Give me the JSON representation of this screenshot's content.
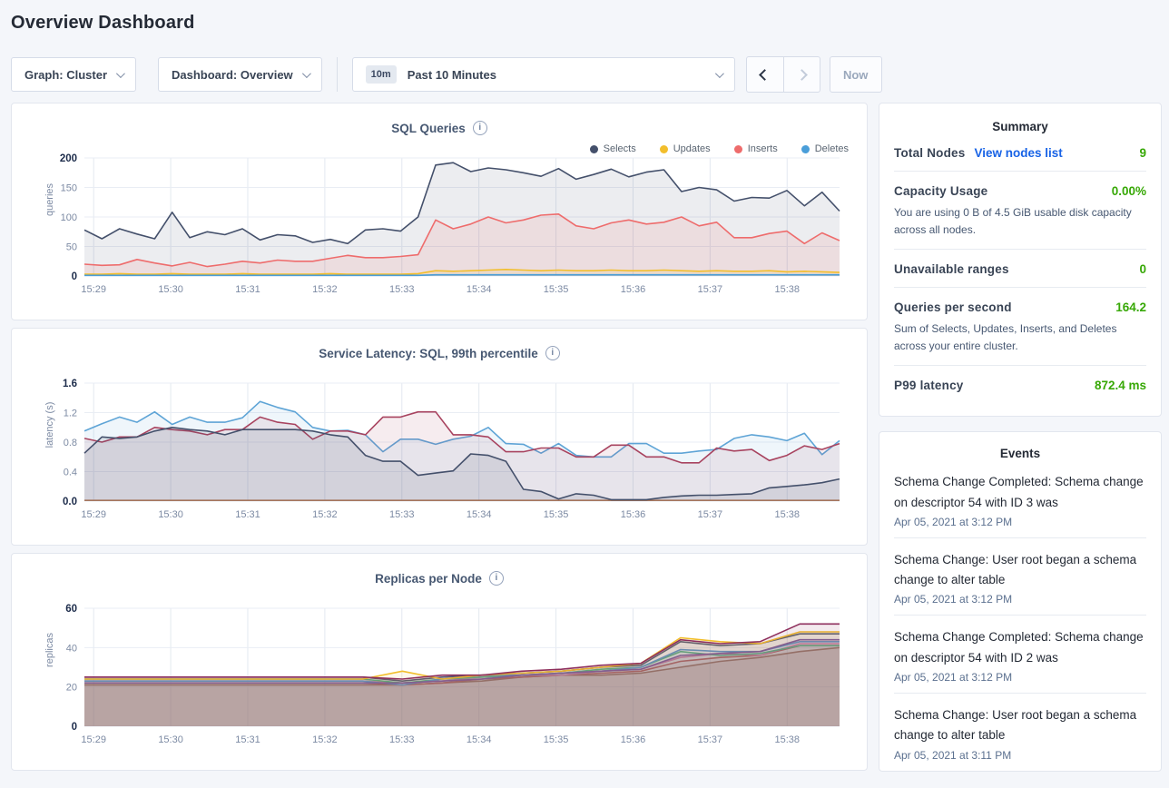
{
  "page": {
    "title": "Overview Dashboard"
  },
  "icons": {
    "info": "i"
  },
  "controls": {
    "graph_dropdown": "Graph: Cluster",
    "dashboard_dropdown": "Dashboard: Overview",
    "time_badge": "10m",
    "time_label": "Past 10 Minutes",
    "now_label": "Now"
  },
  "colors": {
    "accent_green": "#37a806",
    "link_blue": "#1863e6",
    "selects_navy": "#44506b",
    "updates_yellow": "#f2be2c",
    "inserts_red": "#ee6c6c",
    "deletes_blue": "#4a9ed9"
  },
  "summary": {
    "title": "Summary",
    "items": [
      {
        "label": "Total Nodes",
        "link": "View nodes list",
        "value": "9",
        "note": ""
      },
      {
        "label": "Capacity Usage",
        "link": "",
        "value": "0.00%",
        "note": "You are using 0 B of 4.5 GiB usable disk capacity across all nodes."
      },
      {
        "label": "Unavailable ranges",
        "link": "",
        "value": "0",
        "note": ""
      },
      {
        "label": "Queries per second",
        "link": "",
        "value": "164.2",
        "note": "Sum of Selects, Updates, Inserts, and Deletes across your entire cluster."
      },
      {
        "label": "P99 latency",
        "link": "",
        "value": "872.4 ms",
        "note": ""
      }
    ]
  },
  "events": {
    "title": "Events",
    "items": [
      {
        "text": "Schema Change Completed: Schema change on descriptor 54 with ID 3 was",
        "time": "Apr 05, 2021 at 3:12 PM"
      },
      {
        "text": "Schema Change: User root began a schema change to alter table",
        "time": "Apr 05, 2021 at 3:12 PM"
      },
      {
        "text": "Schema Change Completed: Schema change on descriptor 54 with ID 2 was",
        "time": "Apr 05, 2021 at 3:12 PM"
      },
      {
        "text": "Schema Change: User root began a schema change to alter table",
        "time": "Apr 05, 2021 at 3:11 PM"
      }
    ]
  },
  "chart_data": [
    {
      "id": "sql-queries",
      "type": "area",
      "title": "SQL Queries",
      "ylabel": "queries",
      "y_max": 200,
      "y_ticks": [
        0,
        50,
        100,
        150,
        200
      ],
      "y_tick_labels": [
        "0",
        "50",
        "100",
        "150",
        "200"
      ],
      "x_min": -0.12,
      "x_max": 9.68,
      "x_ticks": [
        0,
        1,
        2,
        3,
        4,
        5,
        6,
        7,
        8,
        9
      ],
      "x_tick_labels": [
        "15:29",
        "15:30",
        "15:31",
        "15:32",
        "15:33",
        "15:34",
        "15:35",
        "15:36",
        "15:37",
        "15:38"
      ],
      "grid": true,
      "show_legend": true,
      "legend": [
        "Selects",
        "Updates",
        "Inserts",
        "Deletes"
      ],
      "series": [
        {
          "name": "Selects",
          "color": "#44506b",
          "fill_opacity": 0.1,
          "values": [
            78,
            63,
            80,
            71,
            63,
            108,
            65,
            75,
            70,
            80,
            61,
            70,
            68,
            57,
            62,
            55,
            78,
            80,
            76,
            100,
            188,
            192,
            177,
            183,
            180,
            175,
            169,
            182,
            164,
            172,
            181,
            168,
            176,
            180,
            143,
            150,
            146,
            127,
            133,
            132,
            145,
            119,
            142,
            110
          ]
        },
        {
          "name": "Inserts",
          "color": "#ee6c6c",
          "fill_opacity": 0.12,
          "values": [
            20,
            18,
            19,
            28,
            22,
            17,
            23,
            16,
            20,
            25,
            22,
            27,
            25,
            25,
            30,
            35,
            31,
            31,
            33,
            36,
            95,
            80,
            88,
            100,
            90,
            95,
            103,
            105,
            85,
            80,
            90,
            95,
            88,
            91,
            100,
            85,
            91,
            65,
            65,
            72,
            76,
            55,
            73,
            60
          ]
        },
        {
          "name": "Updates",
          "color": "#f2be2c",
          "fill_opacity": 0.12,
          "values": [
            3,
            3,
            4,
            3,
            3,
            4,
            3,
            3,
            3,
            4,
            3,
            3,
            3,
            3,
            4,
            3,
            3,
            3,
            3,
            4,
            9,
            8,
            9,
            10,
            11,
            10,
            9,
            10,
            9,
            9,
            10,
            9,
            9,
            10,
            9,
            8,
            9,
            8,
            8,
            9,
            7,
            8,
            7,
            6
          ]
        },
        {
          "name": "Deletes",
          "color": "#4a9ed9",
          "fill_opacity": 0.12,
          "values": [
            1,
            1,
            1,
            1,
            1,
            1,
            1,
            1,
            1,
            1,
            1,
            1,
            1,
            1,
            1,
            1,
            1,
            1,
            1,
            1,
            2,
            2,
            2,
            2,
            2,
            2,
            2,
            2,
            2,
            2,
            2,
            2,
            2,
            2,
            2,
            2,
            2,
            2,
            2,
            2,
            2,
            2,
            2,
            2
          ]
        }
      ]
    },
    {
      "id": "service-latency",
      "type": "area",
      "title": "Service Latency: SQL, 99th percentile",
      "ylabel": "latency (s)",
      "y_max": 1.6,
      "y_ticks": [
        0,
        0.4,
        0.8,
        1.2,
        1.6
      ],
      "y_tick_labels": [
        "0.0",
        "0.4",
        "0.8",
        "1.2",
        "1.6"
      ],
      "x_min": -0.12,
      "x_max": 9.68,
      "x_ticks": [
        0,
        1,
        2,
        3,
        4,
        5,
        6,
        7,
        8,
        9
      ],
      "x_tick_labels": [
        "15:29",
        "15:30",
        "15:31",
        "15:32",
        "15:33",
        "15:34",
        "15:35",
        "15:36",
        "15:37",
        "15:38"
      ],
      "grid": true,
      "show_legend": false,
      "series": [
        {
          "name": "node-orange",
          "color": "#bf7d4e",
          "fill_opacity": 0.05,
          "values": [
            0.01,
            0.01,
            0.01,
            0.01,
            0.01,
            0.01,
            0.01,
            0.01,
            0.01,
            0.01,
            0.01,
            0.01,
            0.01,
            0.01,
            0.01,
            0.01,
            0.01,
            0.01,
            0.01,
            0.01,
            0.01,
            0.01,
            0.01,
            0.01,
            0.01,
            0.01,
            0.01,
            0.01,
            0.01,
            0.01,
            0.01,
            0.01,
            0.01,
            0.01,
            0.01,
            0.01,
            0.01,
            0.01,
            0.01,
            0.01,
            0.01,
            0.01,
            0.01,
            0.01
          ]
        },
        {
          "name": "node-blue",
          "color": "#5ea4d6",
          "fill_opacity": 0.1,
          "values": [
            0.95,
            1.05,
            1.14,
            1.07,
            1.21,
            1.04,
            1.14,
            1.07,
            1.07,
            1.13,
            1.35,
            1.27,
            1.21,
            1.0,
            0.95,
            0.96,
            0.9,
            0.67,
            0.84,
            0.84,
            0.77,
            0.84,
            0.88,
            1.0,
            0.78,
            0.77,
            0.65,
            0.78,
            0.62,
            0.6,
            0.6,
            0.78,
            0.78,
            0.65,
            0.65,
            0.68,
            0.7,
            0.85,
            0.9,
            0.87,
            0.82,
            0.92,
            0.63,
            0.82
          ]
        },
        {
          "name": "node-maroon",
          "color": "#a8435f",
          "fill_opacity": 0.1,
          "values": [
            0.85,
            0.8,
            0.87,
            0.87,
            1.0,
            0.97,
            0.95,
            0.9,
            0.97,
            0.97,
            1.14,
            1.07,
            1.04,
            0.84,
            0.95,
            0.95,
            0.9,
            1.14,
            1.14,
            1.21,
            1.21,
            0.9,
            0.9,
            0.87,
            0.67,
            0.67,
            0.72,
            0.72,
            0.6,
            0.6,
            0.76,
            0.76,
            0.6,
            0.6,
            0.52,
            0.52,
            0.72,
            0.68,
            0.7,
            0.55,
            0.62,
            0.75,
            0.7,
            0.78
          ]
        },
        {
          "name": "node-navy",
          "color": "#44506b",
          "fill_opacity": 0.12,
          "values": [
            0.65,
            0.87,
            0.85,
            0.87,
            0.95,
            1.0,
            0.97,
            0.95,
            0.9,
            0.97,
            0.97,
            0.97,
            0.97,
            0.95,
            0.9,
            0.87,
            0.62,
            0.54,
            0.54,
            0.35,
            0.38,
            0.41,
            0.64,
            0.62,
            0.54,
            0.16,
            0.13,
            0.03,
            0.1,
            0.08,
            0.02,
            0.02,
            0.02,
            0.05,
            0.07,
            0.08,
            0.08,
            0.09,
            0.1,
            0.18,
            0.2,
            0.22,
            0.25,
            0.3
          ]
        }
      ]
    },
    {
      "id": "replicas-per-node",
      "type": "area",
      "title": "Replicas per Node",
      "ylabel": "replicas",
      "y_max": 60,
      "y_ticks": [
        0,
        20,
        40,
        60
      ],
      "y_tick_labels": [
        "0",
        "20",
        "40",
        "60"
      ],
      "x_min": -0.12,
      "x_max": 9.68,
      "x_ticks": [
        0,
        1,
        2,
        3,
        4,
        5,
        6,
        7,
        8,
        9
      ],
      "x_tick_labels": [
        "15:29",
        "15:30",
        "15:31",
        "15:32",
        "15:33",
        "15:34",
        "15:35",
        "15:36",
        "15:37",
        "15:38"
      ],
      "grid": true,
      "show_legend": false,
      "series": [
        {
          "name": "node-1",
          "color": "#9e6b55",
          "fill_opacity": 0.18,
          "values": [
            21,
            21,
            21,
            21,
            21,
            21,
            21,
            21,
            21,
            22,
            23,
            25,
            26,
            26,
            27,
            30,
            33,
            35,
            38,
            40
          ]
        },
        {
          "name": "node-2",
          "color": "#c0504d",
          "fill_opacity": 0.1,
          "values": [
            22,
            22,
            22,
            22,
            22,
            22,
            22,
            22,
            21,
            22,
            24,
            25,
            26,
            27,
            28,
            33,
            35,
            36,
            41,
            41
          ]
        },
        {
          "name": "node-3",
          "color": "#e57fae",
          "fill_opacity": 0.1,
          "values": [
            23,
            23,
            23,
            23,
            23,
            23,
            23,
            23,
            22,
            23,
            25,
            26,
            26,
            28,
            29,
            35,
            37,
            36,
            42,
            42
          ]
        },
        {
          "name": "node-4",
          "color": "#53b885",
          "fill_opacity": 0.1,
          "values": [
            24,
            24,
            24,
            24,
            24,
            24,
            24,
            24,
            22,
            24,
            25,
            26,
            27,
            29,
            30,
            38,
            36,
            37,
            41,
            41
          ]
        },
        {
          "name": "node-5",
          "color": "#5b9bd5",
          "fill_opacity": 0.1,
          "values": [
            23,
            23,
            23,
            23,
            23,
            23,
            23,
            23,
            21,
            24,
            26,
            26,
            27,
            28,
            30,
            39,
            38,
            38,
            43,
            43
          ]
        },
        {
          "name": "node-6",
          "color": "#7d5ba6",
          "fill_opacity": 0.08,
          "values": [
            22,
            22,
            22,
            22,
            22,
            22,
            22,
            22,
            22,
            23,
            24,
            26,
            27,
            28,
            29,
            36,
            37,
            38,
            44,
            44
          ]
        },
        {
          "name": "node-7",
          "color": "#4f5d75",
          "fill_opacity": 0.1,
          "values": [
            25,
            25,
            25,
            25,
            25,
            25,
            25,
            25,
            23,
            25,
            26,
            27,
            28,
            30,
            31,
            43,
            41,
            42,
            47,
            47
          ]
        },
        {
          "name": "node-8",
          "color": "#f2be2c",
          "fill_opacity": 0.1,
          "values": [
            24,
            24,
            24,
            24,
            24,
            24,
            24,
            24,
            28,
            24,
            26,
            27,
            28,
            30,
            32,
            45,
            43,
            42,
            48,
            48
          ]
        },
        {
          "name": "node-9",
          "color": "#8e2f5c",
          "fill_opacity": 0.1,
          "values": [
            25,
            25,
            25,
            25,
            25,
            25,
            25,
            25,
            24,
            26,
            26,
            28,
            29,
            31,
            32,
            44,
            42,
            43,
            52,
            52
          ]
        }
      ]
    }
  ]
}
